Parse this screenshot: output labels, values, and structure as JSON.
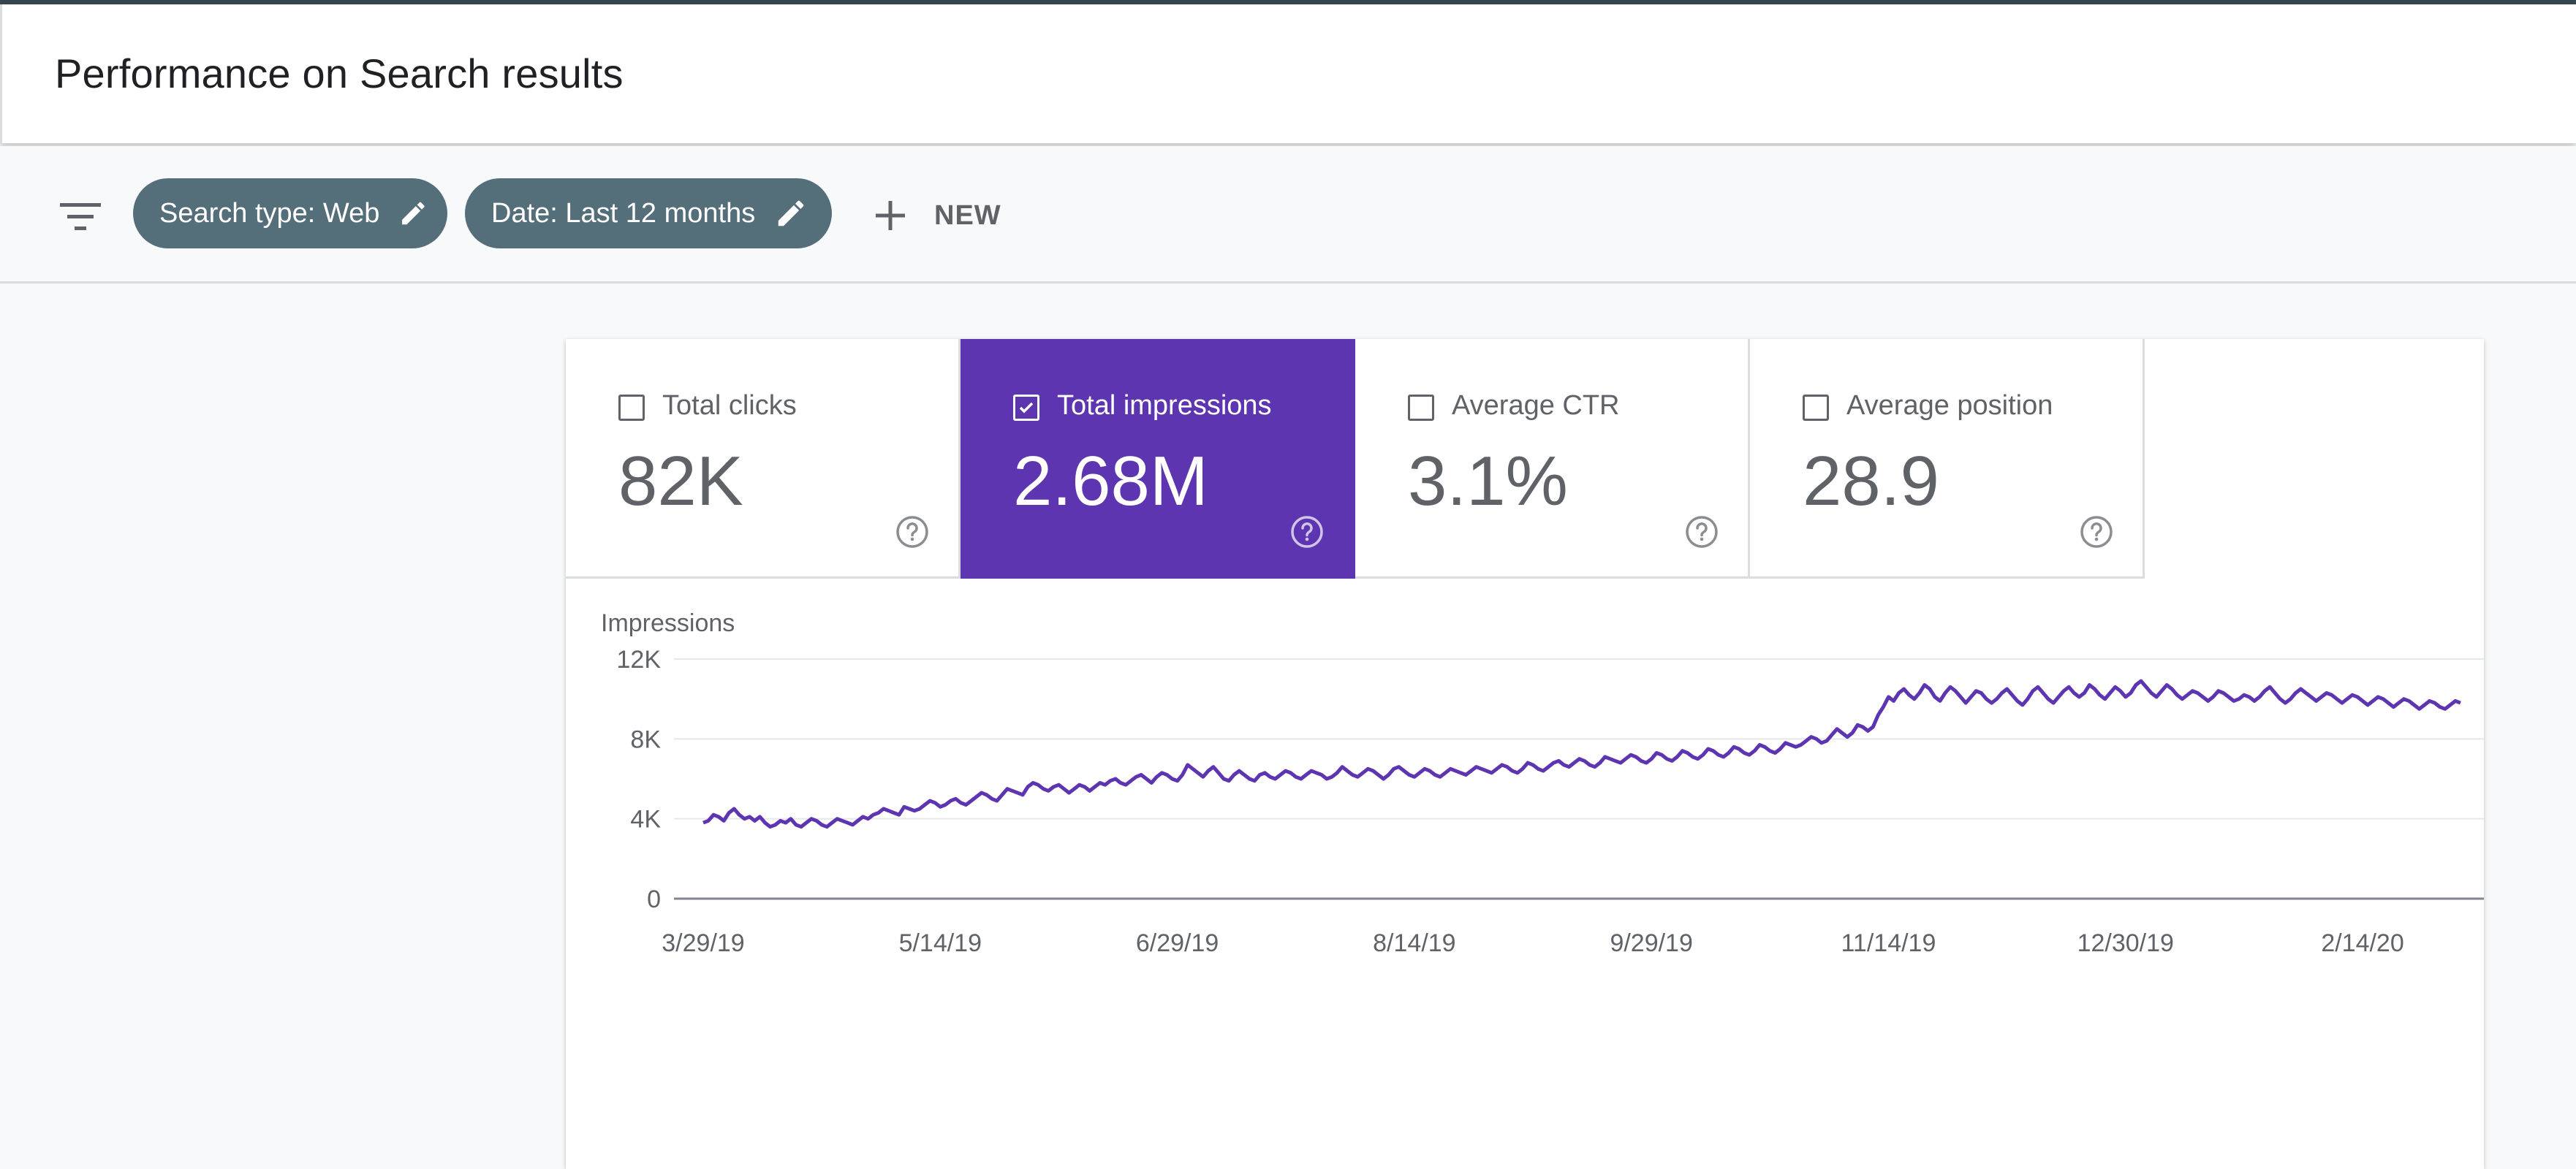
{
  "header": {
    "title": "Performance on Search results"
  },
  "filters": {
    "chips": [
      {
        "label": "Search type: Web"
      },
      {
        "label": "Date: Last 12 months"
      }
    ],
    "new_label": "NEW"
  },
  "metrics": [
    {
      "label": "Total clicks",
      "value": "82K",
      "checked": false
    },
    {
      "label": "Total impressions",
      "value": "2.68M",
      "checked": true
    },
    {
      "label": "Average CTR",
      "value": "3.1%",
      "checked": false
    },
    {
      "label": "Average position",
      "value": "28.9",
      "checked": false
    }
  ],
  "colors": {
    "accent": "#5e35b1",
    "chip": "#546e7a",
    "line": "#5e35b1"
  },
  "chart_data": {
    "type": "line",
    "ylabel": "Impressions",
    "ylim": [
      0,
      12000
    ],
    "ytick_labels": [
      "0",
      "4K",
      "8K",
      "12K"
    ],
    "yticks": [
      0,
      4000,
      8000,
      12000
    ],
    "x_start": "3/29/19",
    "x_tick_labels": [
      "3/29/19",
      "5/14/19",
      "6/29/19",
      "8/14/19",
      "9/29/19",
      "11/14/19",
      "12/30/19",
      "2/14/20"
    ],
    "grid": true,
    "series": [
      {
        "values": [
          3800,
          3900,
          4200,
          4100,
          3900,
          4300,
          4500,
          4200,
          4000,
          4100,
          3900,
          4100,
          3800,
          3600,
          3700,
          3900,
          3800,
          4000,
          3700,
          3600,
          3800,
          4000,
          3900,
          3700,
          3600,
          3800,
          4000,
          3900,
          3800,
          3700,
          3900,
          4100,
          4000,
          4200,
          4300,
          4500,
          4400,
          4300,
          4200,
          4600,
          4500,
          4400,
          4500,
          4700,
          4900,
          4800,
          4600,
          4700,
          4900,
          5000,
          4800,
          4700,
          4900,
          5100,
          5300,
          5200,
          5000,
          4900,
          5200,
          5500,
          5400,
          5300,
          5200,
          5600,
          5800,
          5700,
          5500,
          5400,
          5600,
          5700,
          5500,
          5300,
          5500,
          5700,
          5600,
          5400,
          5600,
          5800,
          5700,
          5900,
          6000,
          5800,
          5700,
          5900,
          6100,
          6200,
          6000,
          5800,
          6100,
          6300,
          6200,
          6000,
          5900,
          6200,
          6700,
          6500,
          6300,
          6100,
          6400,
          6600,
          6300,
          6000,
          5900,
          6200,
          6400,
          6200,
          6000,
          5900,
          6200,
          6300,
          6100,
          6000,
          6200,
          6400,
          6300,
          6100,
          6000,
          6200,
          6400,
          6300,
          6200,
          6000,
          6100,
          6300,
          6600,
          6400,
          6200,
          6100,
          6300,
          6500,
          6400,
          6200,
          6000,
          6200,
          6500,
          6600,
          6400,
          6200,
          6100,
          6300,
          6500,
          6400,
          6200,
          6100,
          6300,
          6500,
          6400,
          6300,
          6200,
          6400,
          6600,
          6500,
          6400,
          6300,
          6500,
          6700,
          6600,
          6400,
          6300,
          6500,
          6800,
          6700,
          6500,
          6400,
          6600,
          6800,
          6900,
          6700,
          6600,
          6800,
          7000,
          6900,
          6700,
          6600,
          6800,
          7100,
          7000,
          6900,
          6800,
          7000,
          7200,
          7100,
          6900,
          6800,
          7000,
          7300,
          7200,
          7000,
          6900,
          7100,
          7400,
          7300,
          7100,
          7000,
          7200,
          7500,
          7400,
          7200,
          7100,
          7300,
          7600,
          7500,
          7300,
          7200,
          7400,
          7700,
          7600,
          7400,
          7300,
          7500,
          7800,
          7700,
          7600,
          7700,
          7900,
          8100,
          8000,
          7800,
          7900,
          8200,
          8500,
          8300,
          8100,
          8300,
          8700,
          8600,
          8400,
          8600,
          9200,
          9600,
          10100,
          9900,
          10300,
          10500,
          10200,
          10000,
          10300,
          10700,
          10500,
          10100,
          9900,
          10300,
          10600,
          10400,
          10100,
          9800,
          10100,
          10400,
          10300,
          10000,
          9800,
          10000,
          10300,
          10500,
          10200,
          9900,
          9700,
          10000,
          10400,
          10600,
          10300,
          10000,
          9800,
          10100,
          10400,
          10600,
          10300,
          10100,
          10300,
          10700,
          10500,
          10200,
          10000,
          10300,
          10600,
          10400,
          10100,
          10300,
          10700,
          10900,
          10600,
          10300,
          10100,
          10400,
          10700,
          10500,
          10200,
          10000,
          10200,
          10400,
          10300,
          10100,
          9900,
          10100,
          10400,
          10300,
          10100,
          9900,
          10000,
          10200,
          10100,
          9900,
          10100,
          10400,
          10600,
          10300,
          10000,
          9800,
          10000,
          10300,
          10500,
          10300,
          10100,
          9900,
          10100,
          10300,
          10200,
          10000,
          9800,
          10000,
          10200,
          10100,
          9900,
          9700,
          9900,
          10100,
          10000,
          9800,
          9600,
          9800,
          10000,
          9900,
          9700,
          9500,
          9700,
          9900,
          9800,
          9600,
          9500,
          9700,
          9900,
          9800
        ]
      }
    ]
  }
}
